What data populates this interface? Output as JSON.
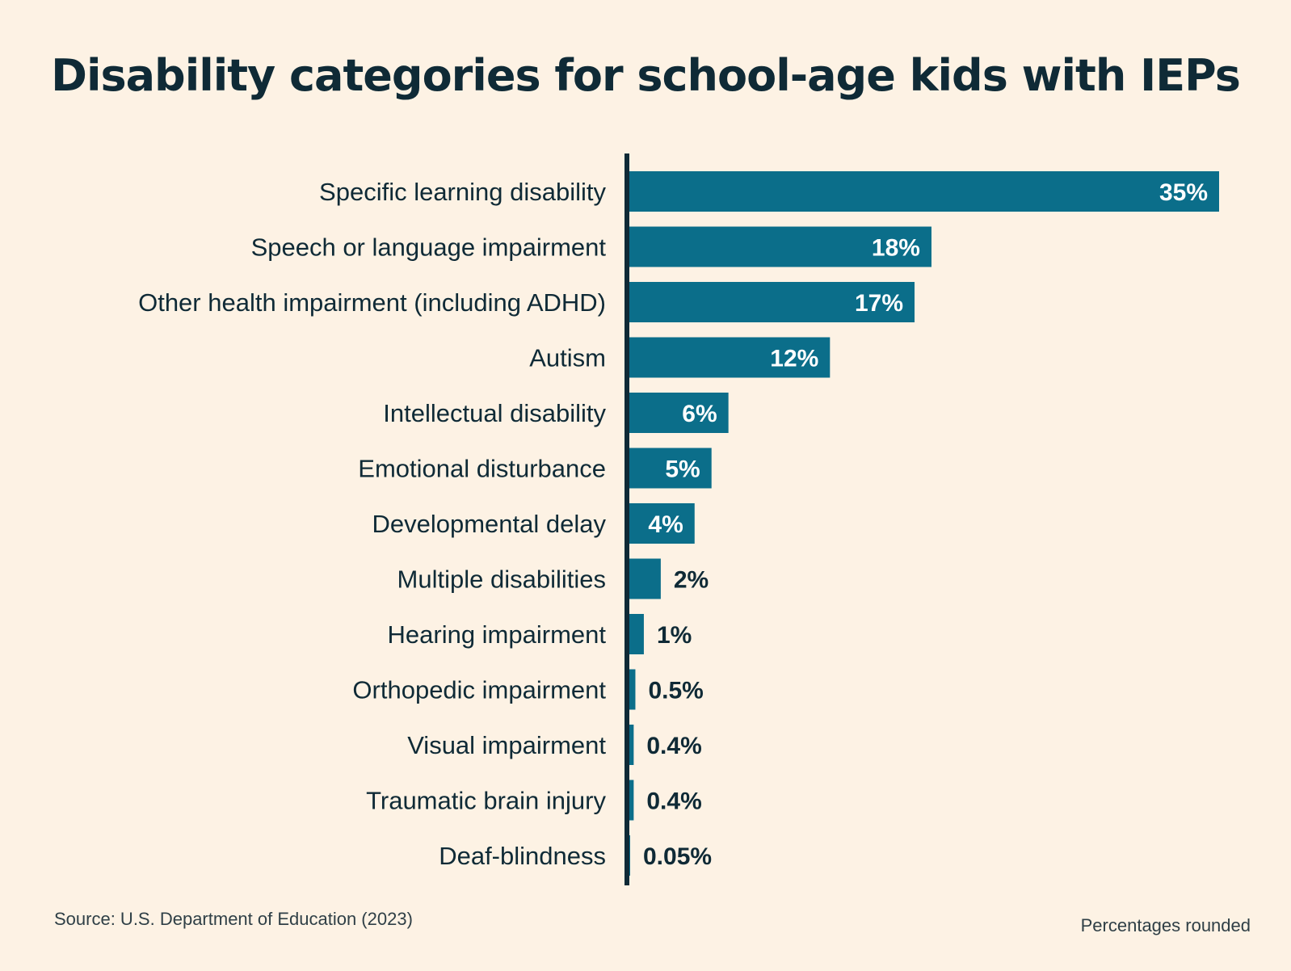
{
  "title": "Disability categories for school-age kids with IEPs",
  "source": "Source: U.S. Department of Education (2023)",
  "note": "Percentages rounded",
  "colors": {
    "background": "#fdf2e4",
    "bar": "#0b6e8a",
    "axis": "#0f2a36",
    "text": "#0f2a36",
    "label_inside": "#ffffff"
  },
  "chart_data": {
    "type": "bar",
    "orientation": "horizontal",
    "title": "Disability categories for school-age kids with IEPs",
    "xlabel": "",
    "ylabel": "",
    "grid": false,
    "categories": [
      "Specific learning disability",
      "Speech or language impairment",
      "Other health impairment (including ADHD)",
      "Autism",
      "Intellectual disability",
      "Emotional disturbance",
      "Developmental delay",
      "Multiple disabilities",
      "Hearing impairment",
      "Orthopedic impairment",
      "Visual impairment",
      "Traumatic brain injury",
      "Deaf-blindness"
    ],
    "values": [
      35,
      18,
      17,
      12,
      6,
      5,
      4,
      2,
      1,
      0.5,
      0.4,
      0.4,
      0.05
    ],
    "value_labels": [
      "35%",
      "18%",
      "17%",
      "12%",
      "6%",
      "5%",
      "4%",
      "2%",
      "1%",
      "0.5%",
      "0.4%",
      "0.4%",
      "0.05%"
    ],
    "xlim": [
      0,
      35
    ]
  }
}
